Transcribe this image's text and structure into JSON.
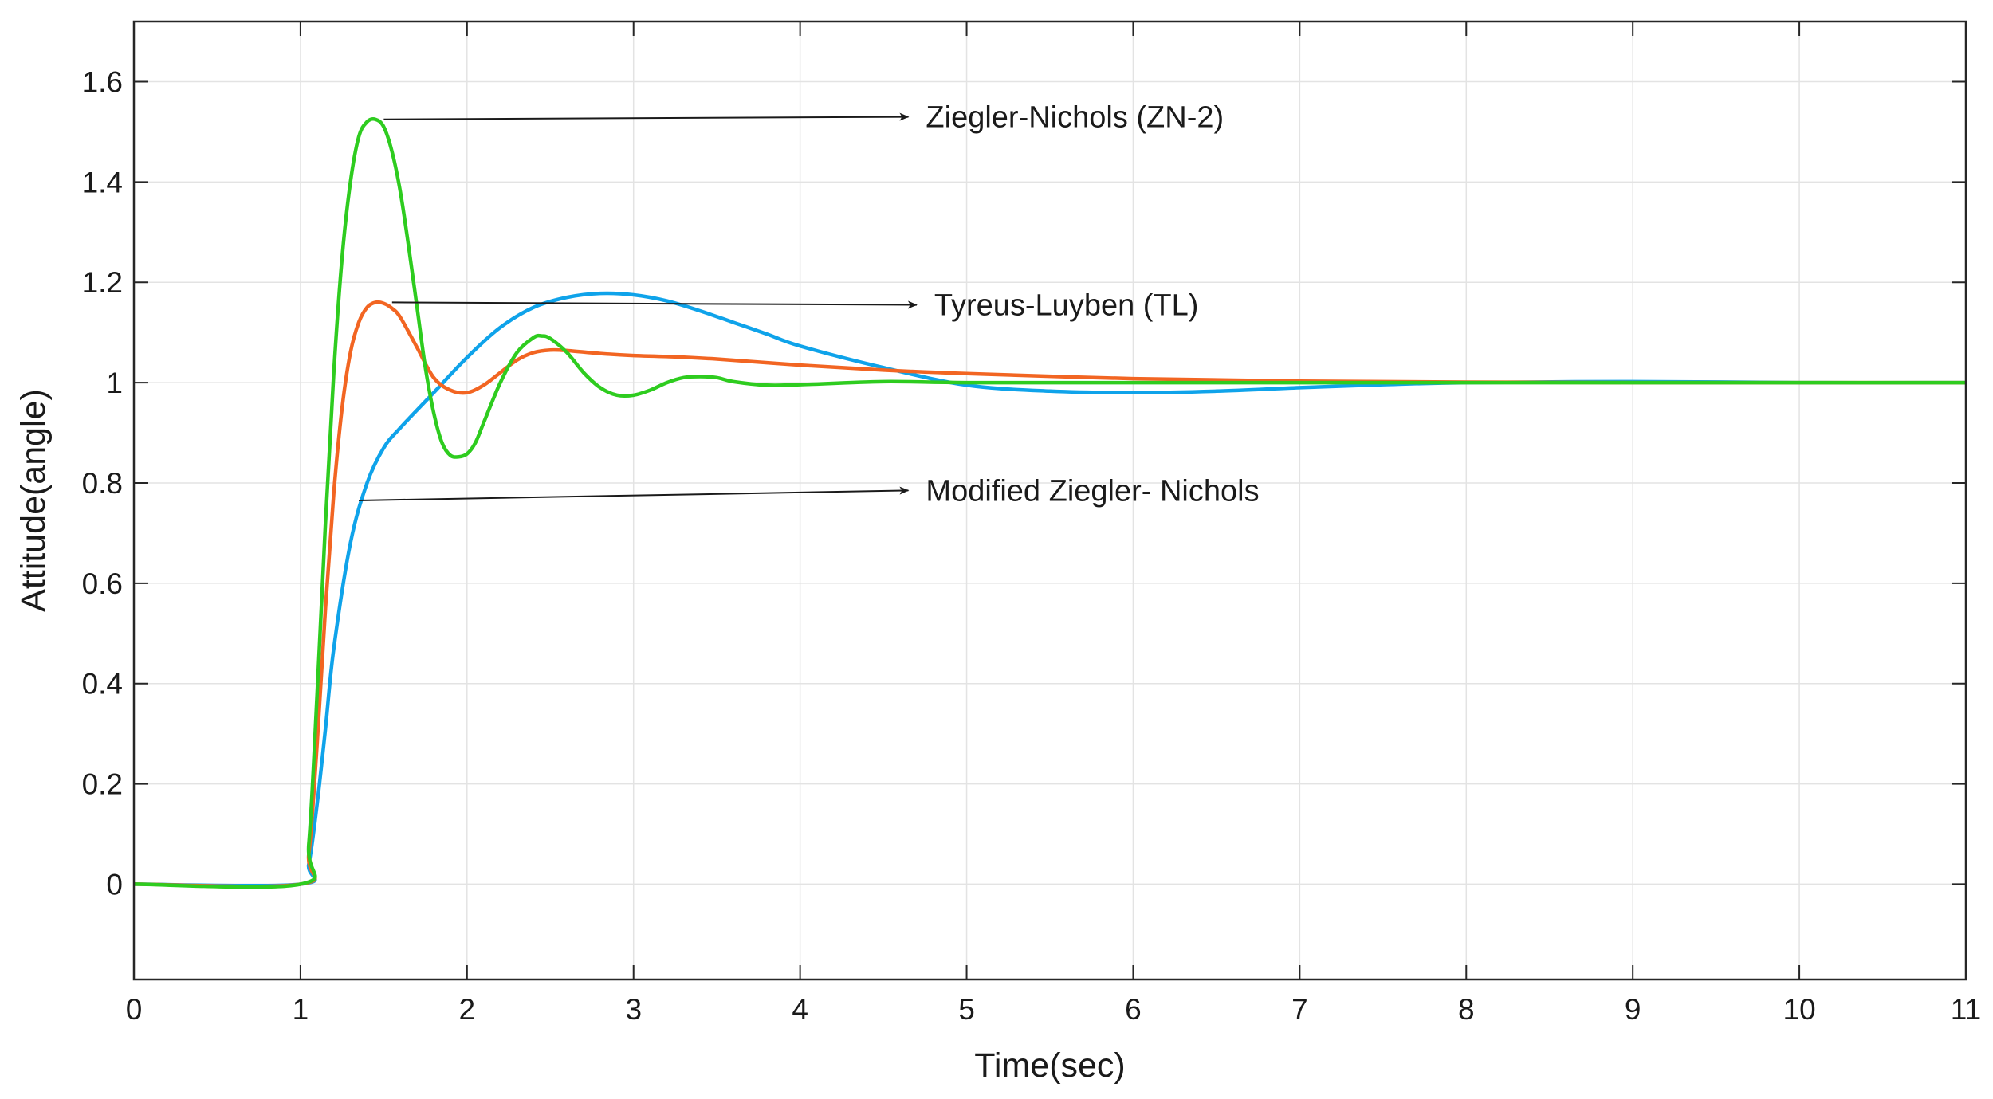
{
  "chart_data": {
    "type": "line",
    "title": "",
    "xlabel": "Time(sec)",
    "ylabel": "Attitude(angle)",
    "xlim": [
      0,
      11
    ],
    "ylim": [
      -0.19,
      1.72
    ],
    "xticks": [
      0,
      1,
      2,
      3,
      4,
      5,
      6,
      7,
      8,
      9,
      10,
      11
    ],
    "xtick_labels": [
      "0",
      "1",
      "2",
      "3",
      "4",
      "5",
      "6",
      "7",
      "8",
      "9",
      "10",
      "11"
    ],
    "yticks": [
      0,
      0.2,
      0.4,
      0.6,
      0.8,
      1,
      1.2,
      1.4,
      1.6
    ],
    "ytick_labels": [
      "0",
      "0.2",
      "0.4",
      "0.6",
      "0.8",
      "1",
      "1.2",
      "1.4",
      "1.6"
    ],
    "grid": true,
    "series": [
      {
        "name": "Modified Ziegler- Nichols",
        "color": "#0fa3ea",
        "x": [
          0,
          1.0,
          1.05,
          1.1,
          1.15,
          1.2,
          1.3,
          1.4,
          1.5,
          1.6,
          1.8,
          2.0,
          2.2,
          2.4,
          2.6,
          2.8,
          3.0,
          3.2,
          3.4,
          3.6,
          3.8,
          4.0,
          4.5,
          5.0,
          5.5,
          6.0,
          6.5,
          7.0,
          7.5,
          8.0,
          9.0,
          10.0,
          11.0
        ],
        "y": [
          0,
          0,
          0.04,
          0.16,
          0.31,
          0.47,
          0.68,
          0.8,
          0.87,
          0.91,
          0.98,
          1.05,
          1.11,
          1.15,
          1.17,
          1.178,
          1.175,
          1.163,
          1.143,
          1.12,
          1.097,
          1.073,
          1.03,
          0.995,
          0.983,
          0.98,
          0.983,
          0.99,
          0.996,
          1.0,
          1.002,
          1.0,
          1.0
        ]
      },
      {
        "name": "Tyreus-Luyben (TL)",
        "color": "#f26522",
        "x": [
          0,
          1.0,
          1.05,
          1.1,
          1.15,
          1.2,
          1.25,
          1.3,
          1.35,
          1.4,
          1.45,
          1.5,
          1.55,
          1.6,
          1.7,
          1.8,
          1.9,
          2.0,
          2.1,
          2.2,
          2.3,
          2.4,
          2.5,
          2.6,
          2.8,
          3.0,
          3.2,
          3.5,
          4.0,
          4.5,
          5.0,
          6.0,
          7.0,
          8.0,
          9.0,
          10.0,
          11.0
        ],
        "y": [
          0,
          0,
          0.06,
          0.28,
          0.55,
          0.78,
          0.95,
          1.06,
          1.12,
          1.15,
          1.16,
          1.158,
          1.148,
          1.13,
          1.07,
          1.01,
          0.985,
          0.98,
          0.995,
          1.02,
          1.045,
          1.06,
          1.065,
          1.064,
          1.058,
          1.054,
          1.052,
          1.047,
          1.035,
          1.025,
          1.018,
          1.008,
          1.003,
          1.001,
          1.0,
          1.0,
          1.0
        ]
      },
      {
        "name": "Ziegler-Nichols (ZN-2)",
        "color": "#2ecc1f",
        "x": [
          0,
          1.0,
          1.05,
          1.1,
          1.15,
          1.2,
          1.25,
          1.3,
          1.35,
          1.4,
          1.45,
          1.5,
          1.55,
          1.6,
          1.65,
          1.7,
          1.75,
          1.8,
          1.85,
          1.9,
          1.95,
          2.0,
          2.05,
          2.1,
          2.2,
          2.3,
          2.4,
          2.45,
          2.5,
          2.6,
          2.7,
          2.8,
          2.9,
          3.0,
          3.1,
          3.2,
          3.3,
          3.4,
          3.5,
          3.6,
          3.8,
          4.0,
          4.5,
          5.0,
          6.0,
          7.0,
          8.0,
          11.0
        ],
        "y": [
          0,
          0,
          0.08,
          0.38,
          0.72,
          1.02,
          1.25,
          1.4,
          1.49,
          1.52,
          1.525,
          1.51,
          1.46,
          1.38,
          1.27,
          1.15,
          1.03,
          0.94,
          0.88,
          0.855,
          0.852,
          0.858,
          0.88,
          0.92,
          1.0,
          1.06,
          1.09,
          1.093,
          1.088,
          1.06,
          1.02,
          0.99,
          0.975,
          0.975,
          0.985,
          1.0,
          1.01,
          1.012,
          1.01,
          1.002,
          0.995,
          0.996,
          1.002,
          1.0,
          1.0,
          1.0,
          1.0,
          1.0
        ]
      }
    ],
    "annotations": [
      {
        "text": "Ziegler-Nichols (ZN-2)",
        "from": [
          1.5,
          1.525
        ],
        "to": [
          4.65,
          1.53
        ]
      },
      {
        "text": "Tyreus-Luyben (TL)",
        "from": [
          1.55,
          1.16
        ],
        "to": [
          4.7,
          1.155
        ]
      },
      {
        "text": "Modified Ziegler- Nichols",
        "from": [
          1.35,
          0.765
        ],
        "to": [
          4.65,
          0.785
        ]
      }
    ]
  }
}
